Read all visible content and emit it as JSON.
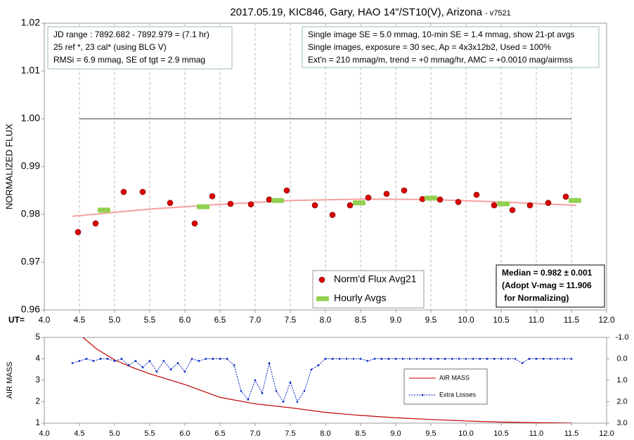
{
  "chart_data": [
    {
      "type": "scatter",
      "title": "2017.05.19, KIC846, Gary, HAO 14\"/ST10(V), Arizona",
      "subtitle": "- v7521",
      "ylabel": "NORMALIZED FLUX",
      "xlabel": "UT=",
      "xlim": [
        4,
        12
      ],
      "xticks": [
        {
          "value": 4,
          "label": "4.0"
        },
        4.5,
        {
          "value": 5,
          "label": "5.0"
        },
        5.5,
        {
          "value": 6,
          "label": "6.0"
        },
        6.5,
        {
          "value": 7,
          "label": "7.0"
        },
        7.5,
        {
          "value": 8,
          "label": "8.0"
        },
        8.5,
        {
          "value": 9,
          "label": "9.0"
        },
        9.5,
        {
          "value": 10,
          "label": "10.0"
        },
        10.5,
        {
          "value": 11,
          "label": "11.0"
        },
        11.5,
        {
          "value": 12,
          "label": "12.0"
        }
      ],
      "ylim": [
        0.96,
        1.02
      ],
      "yticks": [
        0.96,
        0.97,
        0.98,
        0.99,
        {
          "value": 1,
          "label": "1.00"
        },
        1.01,
        1.02
      ],
      "grid": "x",
      "legend": "lower center",
      "reference_line": {
        "value": 1,
        "xrange": [
          4.5,
          11.5
        ],
        "color": "#999999"
      },
      "series": [
        {
          "name": "Norm'd Flux Avg21",
          "color": "#dd0000",
          "mode": "markers",
          "x": [
            4.48,
            4.73,
            5.13,
            5.4,
            5.79,
            6.14,
            6.39,
            6.65,
            6.94,
            7.2,
            7.45,
            7.85,
            8.1,
            8.35,
            8.61,
            8.87,
            9.12,
            9.38,
            9.63,
            9.89,
            10.15,
            10.4,
            10.66,
            10.91,
            11.17,
            11.42
          ],
          "values": [
            0.9763,
            0.9781,
            0.9847,
            0.9847,
            0.9824,
            0.9781,
            0.9838,
            0.9822,
            0.9821,
            0.9831,
            0.985,
            0.9819,
            0.9799,
            0.9819,
            0.9835,
            0.9843,
            0.985,
            0.9832,
            0.9831,
            0.9826,
            0.9841,
            0.9819,
            0.9809,
            0.9819,
            0.9824,
            0.9837
          ]
        },
        {
          "name": "Hourly Avgs",
          "color": "#92d050",
          "mode": "bars",
          "x": [
            4.85,
            6.26,
            7.32,
            8.48,
            9.5,
            10.53,
            11.55
          ],
          "values": [
            0.9809,
            0.9816,
            0.9829,
            0.9824,
            0.9834,
            0.9822,
            0.9829
          ]
        },
        {
          "color": "#f4a0a0",
          "mode": "line",
          "x": [
            4.4,
            5.5,
            6.5,
            7.5,
            8.5,
            9.5,
            10.5,
            11.57
          ],
          "values": [
            0.9796,
            0.9811,
            0.9821,
            0.9829,
            0.9832,
            0.9831,
            0.9826,
            0.9819
          ]
        }
      ],
      "text_boxes": [
        [
          "JD range : 7892.682 - 7892.979 = (7.1 hr)",
          "25 ref *, 23 cal* (using BLG V)",
          "RMSi = 6.9 mmag, SE of tgt = 2.9 mmag"
        ],
        [
          "Single image SE = 5.0 mmag, 10-min SE = 1.4 mmag, show 21-pt avgs",
          "Single images, exposure = 30 sec, Ap = 4x3x12b2, Used = 100%",
          "Ext'n = 210 mmag/m, trend = +0 mmag/hr, AMC = +0.0010 mag/airmss"
        ],
        [
          "Median = 0.982 ± 0.001",
          "(Adopt V-mag = 11.906",
          " for Normalizing)"
        ]
      ]
    },
    {
      "type": "line",
      "ylabel": "AIR MASS",
      "xlim": [
        4,
        12
      ],
      "xticks": [
        {
          "value": 4,
          "label": "4.0"
        },
        4.5,
        {
          "value": 5,
          "label": "5.0"
        },
        5.5,
        {
          "value": 6,
          "label": "6.0"
        },
        6.5,
        {
          "value": 7,
          "label": "7.0"
        },
        7.5,
        {
          "value": 8,
          "label": "8.0"
        },
        8.5,
        {
          "value": 9,
          "label": "9.0"
        },
        9.5,
        {
          "value": 10,
          "label": "10.0"
        },
        10.5,
        {
          "value": 11,
          "label": "11.0"
        },
        11.5,
        {
          "value": 12,
          "label": "12.0"
        }
      ],
      "ylim": [
        1,
        5
      ],
      "yticks": [
        1,
        2,
        3,
        4,
        5
      ],
      "y2lim": [
        3,
        -1
      ],
      "y2ticks": [
        {
          "value": -1,
          "label": "-1.0"
        },
        {
          "value": 0,
          "label": "0.0"
        },
        {
          "value": 1,
          "label": "1.0"
        },
        {
          "value": 2,
          "label": "2.0"
        },
        {
          "value": 3,
          "label": "3.0"
        }
      ],
      "legend": "right",
      "series": [
        {
          "name": "AIR MASS",
          "color": "#c00000",
          "mode": "line",
          "x": [
            4.55,
            4.75,
            5.0,
            5.25,
            5.5,
            5.75,
            6.0,
            6.5,
            7.0,
            7.5,
            8.0,
            8.5,
            9.0,
            9.5,
            10.0,
            10.5,
            11.0,
            11.5
          ],
          "values": [
            5.0,
            4.45,
            3.95,
            3.6,
            3.3,
            3.05,
            2.8,
            2.2,
            1.9,
            1.72,
            1.5,
            1.36,
            1.25,
            1.17,
            1.1,
            1.05,
            1.02,
            1.0
          ]
        },
        {
          "name": "Extra Losses",
          "color": "#0020c0",
          "mode": "line-markers",
          "axis": "y2",
          "x": [
            4.4,
            4.5,
            4.6,
            4.7,
            4.8,
            4.9,
            5.0,
            5.1,
            5.2,
            5.3,
            5.4,
            5.5,
            5.6,
            5.7,
            5.8,
            5.9,
            6.0,
            6.1,
            6.2,
            6.3,
            6.4,
            6.5,
            6.6,
            6.7,
            6.8,
            6.9,
            7.0,
            7.1,
            7.2,
            7.3,
            7.4,
            7.5,
            7.6,
            7.7,
            7.8,
            7.9,
            8.0,
            8.1,
            8.2,
            8.3,
            8.4,
            8.5,
            8.6,
            8.7,
            8.8,
            8.9,
            9.0,
            9.1,
            9.2,
            9.3,
            9.4,
            9.5,
            9.6,
            9.7,
            9.8,
            9.9,
            10.0,
            10.1,
            10.2,
            10.3,
            10.4,
            10.5,
            10.6,
            10.7,
            10.8,
            10.9,
            11.0,
            11.1,
            11.2,
            11.3,
            11.4,
            11.5
          ],
          "values": [
            0.2,
            0.1,
            0.0,
            0.1,
            0.0,
            0.0,
            0.1,
            0.0,
            0.3,
            0.1,
            0.4,
            0.1,
            0.6,
            0.1,
            0.5,
            0.2,
            0.6,
            0.0,
            0.1,
            0.0,
            0.0,
            0.0,
            0.0,
            0.3,
            1.5,
            1.9,
            1.0,
            1.6,
            0.2,
            1.5,
            2.0,
            1.1,
            2.0,
            1.5,
            0.5,
            0.3,
            0.0,
            0.0,
            0.0,
            0.0,
            0.0,
            0.0,
            0.1,
            0.0,
            0.0,
            0.0,
            0.0,
            0.0,
            0.0,
            0.0,
            0.0,
            0.0,
            0.0,
            0.0,
            0.0,
            0.0,
            0.0,
            0.0,
            0.0,
            0.0,
            0.0,
            0.0,
            0.0,
            0.0,
            0.2,
            0.0,
            0.0,
            0.0,
            0.0,
            0.0,
            0.0,
            0.0
          ]
        }
      ]
    }
  ]
}
